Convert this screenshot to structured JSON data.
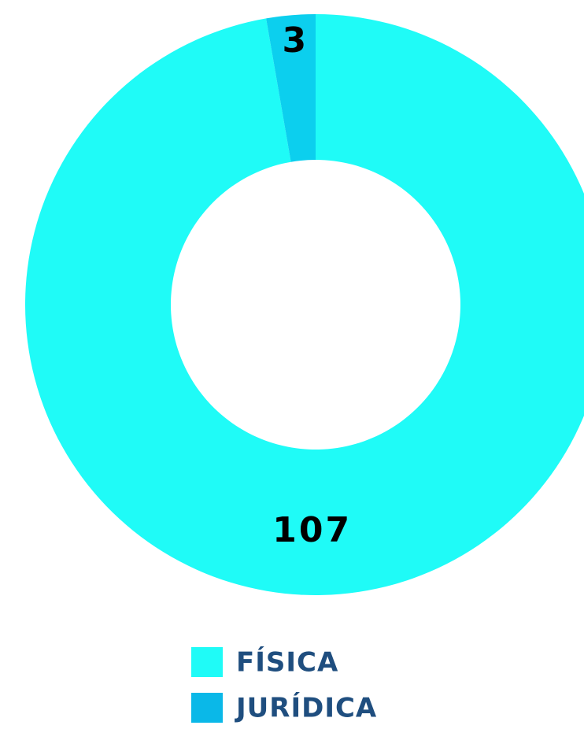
{
  "chart_data": {
    "type": "donut",
    "categories": [
      "FÍSICA",
      "JURÍDICA"
    ],
    "values": [
      107,
      3
    ],
    "colors": [
      "#1ffbf7",
      "#0ccfee"
    ],
    "legend_colors": [
      "#1ffbf7",
      "#0ab8e8"
    ]
  }
}
